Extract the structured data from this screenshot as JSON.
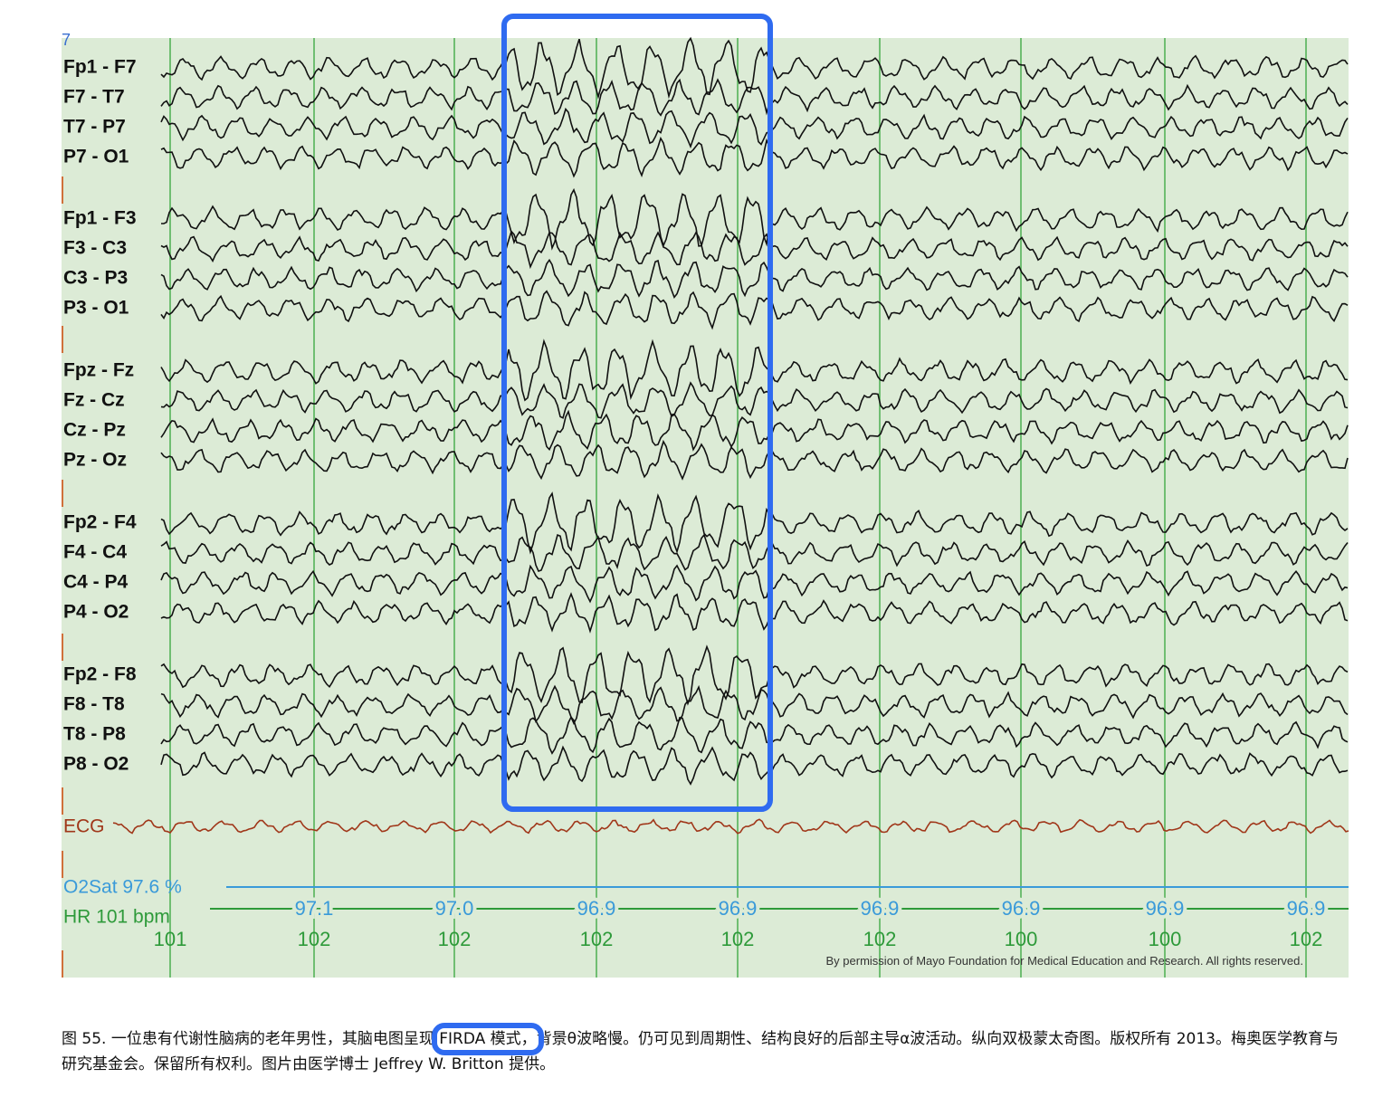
{
  "figure": {
    "marker": "7",
    "channels": [
      "Fp1 - F7",
      "F7 - T7",
      "T7 - P7",
      "P7 - O1",
      "Fp1 - F3",
      "F3 - C3",
      "C3 - P3",
      "P3 - O1",
      "Fpz - Fz",
      "Fz - Cz",
      "Cz - Pz",
      "Pz - Oz",
      "Fp2 - F4",
      "F4 - C4",
      "C4 - P4",
      "P4 - O2",
      "Fp2 - F8",
      "F8 - T8",
      "T8 - P8",
      "P8 - O2"
    ],
    "ecg_label": "ECG",
    "o2sat_label": "O2Sat 97.6 %",
    "hr_label": "HR 101 bpm",
    "o2_values": [
      "97.1",
      "97.0",
      "96.9",
      "96.9",
      "96.9",
      "96.9",
      "96.9",
      "96.9"
    ],
    "hr_values": [
      "101",
      "102",
      "102",
      "102",
      "102",
      "102",
      "100",
      "100",
      "102"
    ],
    "copyright": "By permission of Mayo Foundation for Medical Education and Research. All rights reserved."
  },
  "caption": {
    "before": "图 55. 一位患有代谢性脑病的老年男性，其脑电图呈现 ",
    "highlight": "FIRDA 模式，",
    "after": "背景θ波略慢。仍可见到周期性、结构良好的后部主导α波活动。纵向双极蒙太奇图。版权所有 2013。梅奥医学教育与研究基金会。保留所有权利。图片由医学博士 Jeffrey W. Britton 提供。"
  }
}
